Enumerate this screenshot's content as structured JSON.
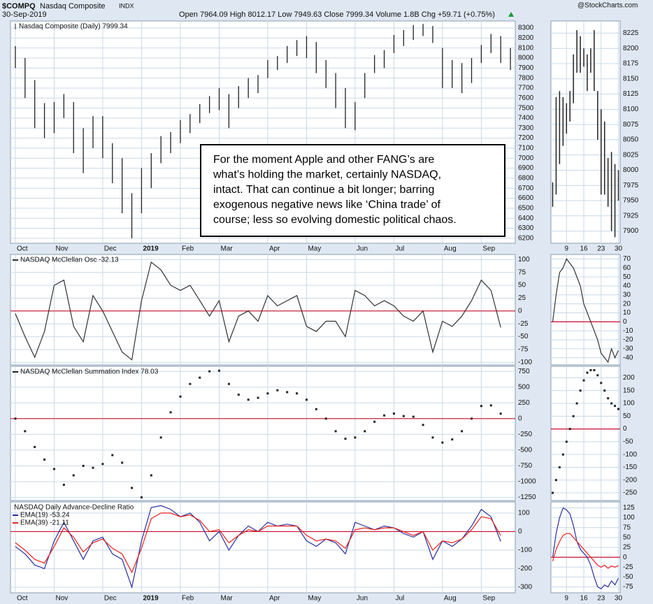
{
  "header": {
    "symbol": "$COMPQ",
    "name": "Nasdaq Composite",
    "exchange": "INDX",
    "date": "30-Sep-2019",
    "quote": "Open 7964.09 High 8012.17 Low 7949.63 Close 7999.34 Volume 1.8B Chg +59.71 (+0.75%)",
    "source": "@StockCharts.com"
  },
  "chart_data": [
    {
      "type": "ohlc",
      "legend": "Nasdaq Composite (Daily) 7999.34",
      "color": "#222222",
      "grid": true,
      "annotation": [
        "For the moment Apple and other FANG’s are",
        "what’s holding the market, certainly NASDAQ,",
        "intact. That can continue a bit longer; barring",
        "exogenous negative news like ‘China trade’ of",
        "course; less so evolving domestic political chaos."
      ],
      "categories": [
        "Oct",
        null,
        null,
        null,
        "Nov",
        null,
        null,
        null,
        null,
        "Dec",
        null,
        null,
        null,
        "2019",
        null,
        null,
        null,
        "Feb",
        null,
        null,
        null,
        "Mar",
        null,
        null,
        null,
        null,
        "Apr",
        null,
        null,
        null,
        "May",
        null,
        null,
        null,
        null,
        "Jun",
        null,
        null,
        null,
        "Jul",
        null,
        null,
        null,
        null,
        "Aug",
        null,
        null,
        null,
        "Sep",
        null,
        null,
        null
      ],
      "high": [
        8120,
        8000,
        7780,
        7550,
        7560,
        7640,
        7560,
        7300,
        7420,
        7420,
        7150,
        7000,
        6650,
        6900,
        7050,
        7220,
        7260,
        7380,
        7440,
        7540,
        7620,
        7700,
        7640,
        7720,
        7800,
        7830,
        7980,
        8020,
        8120,
        8180,
        8220,
        8160,
        7980,
        7850,
        7700,
        7560,
        7850,
        8030,
        8080,
        8230,
        8280,
        8330,
        8340,
        8320,
        8100,
        7980,
        7950,
        8000,
        8130,
        8240,
        8220,
        8100
      ],
      "low": [
        7900,
        7600,
        7300,
        7200,
        7250,
        7400,
        7050,
        6850,
        7100,
        7000,
        6750,
        6450,
        6200,
        6450,
        6700,
        6950,
        7050,
        7150,
        7250,
        7350,
        7450,
        7480,
        7300,
        7500,
        7600,
        7650,
        7800,
        7880,
        7950,
        8020,
        8000,
        7850,
        7700,
        7500,
        7300,
        7280,
        7600,
        7850,
        7900,
        8050,
        8120,
        8180,
        8220,
        8150,
        7700,
        7700,
        7650,
        7750,
        7950,
        8050,
        7950,
        7880
      ],
      "ylim": [
        6150,
        8370
      ],
      "yticks": [
        8300,
        8200,
        8100,
        8000,
        7900,
        7800,
        7700,
        7600,
        7500,
        7400,
        7300,
        7200,
        7100,
        7000,
        6900,
        6800,
        6700,
        6600,
        6500,
        6400,
        6300,
        6200
      ]
    },
    {
      "type": "line",
      "grid": true,
      "reference_line": 0,
      "reference_color": "#c8102e",
      "series": [
        {
          "name": "NASDAQ McClellan Osc -32.13",
          "color": "#333333",
          "values": [
            -5,
            -50,
            -90,
            -40,
            50,
            60,
            -30,
            -60,
            30,
            0,
            -40,
            -80,
            -95,
            20,
            95,
            80,
            50,
            40,
            50,
            20,
            -10,
            20,
            -60,
            -10,
            0,
            -20,
            30,
            10,
            20,
            30,
            -30,
            -40,
            -20,
            -20,
            -50,
            40,
            30,
            10,
            20,
            10,
            -10,
            -20,
            0,
            -80,
            -20,
            -30,
            -10,
            20,
            60,
            40,
            -32
          ]
        }
      ],
      "ylim": [
        -105,
        110
      ],
      "yticks": [
        100,
        75,
        50,
        25,
        0,
        -25,
        -50,
        -75,
        -100
      ]
    },
    {
      "type": "dots",
      "grid": true,
      "reference_line": 0,
      "reference_color": "#c8102e",
      "series": [
        {
          "name": "NASDAQ McClellan Summation Index 78.03",
          "color": "#222222",
          "values": [
            0,
            -200,
            -450,
            -650,
            -800,
            -1050,
            -900,
            -750,
            -780,
            -720,
            -580,
            -700,
            -1100,
            -1250,
            -900,
            -300,
            100,
            350,
            550,
            650,
            750,
            760,
            550,
            380,
            300,
            330,
            400,
            450,
            420,
            400,
            300,
            150,
            0,
            -200,
            -320,
            -300,
            -200,
            -50,
            50,
            80,
            40,
            30,
            -100,
            -300,
            -380,
            -330,
            -200,
            0,
            200,
            210,
            78
          ]
        }
      ],
      "ylim": [
        -1300,
        830
      ],
      "yticks": [
        750,
        500,
        250,
        0,
        -250,
        -500,
        -750,
        -1000,
        -1250
      ]
    },
    {
      "type": "line",
      "title": "NASDAQ Daily Advance-Decline Ratio",
      "grid": true,
      "reference_line": 0,
      "reference_color": "#c8102e",
      "series": [
        {
          "name": "EMA(19) -53.24",
          "color": "#2b2f9e",
          "values": [
            -80,
            -120,
            -180,
            -200,
            -50,
            50,
            -50,
            -150,
            -50,
            -30,
            -120,
            -150,
            -300,
            -50,
            130,
            140,
            120,
            80,
            100,
            50,
            -50,
            0,
            -100,
            -20,
            30,
            0,
            50,
            30,
            40,
            30,
            -50,
            -80,
            -40,
            -60,
            -120,
            50,
            30,
            10,
            30,
            20,
            -10,
            -30,
            0,
            -150,
            -50,
            -80,
            -40,
            30,
            120,
            80,
            -53
          ]
        },
        {
          "name": "EMA(39) -21.11",
          "color": "#e8231f",
          "values": [
            -60,
            -100,
            -150,
            -170,
            -80,
            20,
            -30,
            -110,
            -60,
            -40,
            -90,
            -120,
            -220,
            -90,
            70,
            100,
            100,
            80,
            90,
            60,
            0,
            10,
            -60,
            -20,
            10,
            0,
            30,
            30,
            30,
            30,
            -20,
            -50,
            -40,
            -50,
            -90,
            10,
            20,
            10,
            20,
            20,
            0,
            -20,
            0,
            -100,
            -50,
            -60,
            -40,
            10,
            80,
            70,
            -21
          ]
        }
      ],
      "ylim": [
        -330,
        160
      ],
      "yticks": [
        100,
        0,
        -100,
        -200,
        -300
      ]
    },
    {
      "type": "ohlc",
      "color": "#222222",
      "grid": true,
      "categories": [
        null,
        null,
        null,
        null,
        "9",
        null,
        null,
        null,
        null,
        "16",
        null,
        null,
        null,
        null,
        "23",
        null,
        null,
        null,
        null,
        "30"
      ],
      "high": [
        7980,
        8120,
        8130,
        8120,
        8110,
        8130,
        8190,
        8230,
        8220,
        8200,
        8190,
        8200,
        8230,
        8130,
        8100,
        8080,
        8020,
        8030,
        8010,
        8000
      ],
      "low": [
        7940,
        7960,
        8010,
        8040,
        8060,
        8080,
        8110,
        8160,
        8160,
        8170,
        8130,
        8160,
        8130,
        8050,
        7960,
        7960,
        7940,
        7900,
        7890,
        7950
      ],
      "ylim": [
        7880,
        8245
      ],
      "yticks": [
        8225,
        8200,
        8175,
        8150,
        8125,
        8100,
        8075,
        8050,
        8025,
        8000,
        7975,
        7950,
        7925,
        7900
      ]
    },
    {
      "type": "line",
      "grid": true,
      "reference_line": 0,
      "reference_color": "#c8102e",
      "series": [
        {
          "color": "#333333",
          "values": [
            0,
            30,
            55,
            60,
            70,
            65,
            60,
            50,
            40,
            20,
            10,
            0,
            -10,
            -20,
            -35,
            -40,
            -45,
            -30,
            -40,
            -32
          ]
        }
      ],
      "ylim": [
        -48,
        75
      ],
      "yticks": [
        70,
        60,
        50,
        40,
        30,
        20,
        10,
        0,
        -10,
        -20,
        -30,
        -40
      ]
    },
    {
      "type": "dots",
      "grid": true,
      "reference_line": 0,
      "reference_color": "#c8102e",
      "series": [
        {
          "color": "#222222",
          "values": [
            -250,
            -200,
            -150,
            -100,
            -50,
            0,
            50,
            100,
            150,
            190,
            220,
            230,
            230,
            210,
            180,
            150,
            120,
            100,
            90,
            78
          ]
        }
      ],
      "ylim": [
        -280,
        245
      ],
      "yticks": [
        200,
        150,
        100,
        50,
        0,
        -50,
        -100,
        -150,
        -200,
        -250
      ]
    },
    {
      "type": "line",
      "grid": true,
      "reference_line": 0,
      "reference_color": "#c8102e",
      "series": [
        {
          "color": "#2b2f9e",
          "values": [
            0,
            60,
            100,
            125,
            120,
            110,
            80,
            40,
            20,
            10,
            0,
            -20,
            -50,
            -75,
            -80,
            -70,
            -75,
            -60,
            -70,
            -53
          ]
        },
        {
          "color": "#e8231f",
          "values": [
            -10,
            20,
            40,
            55,
            60,
            60,
            50,
            40,
            30,
            20,
            10,
            0,
            -10,
            -20,
            -25,
            -20,
            -28,
            -22,
            -25,
            -21
          ]
        }
      ],
      "ylim": [
        -90,
        140
      ],
      "yticks": [
        125,
        100,
        75,
        50,
        25,
        0,
        -25,
        -50,
        -75
      ]
    }
  ]
}
